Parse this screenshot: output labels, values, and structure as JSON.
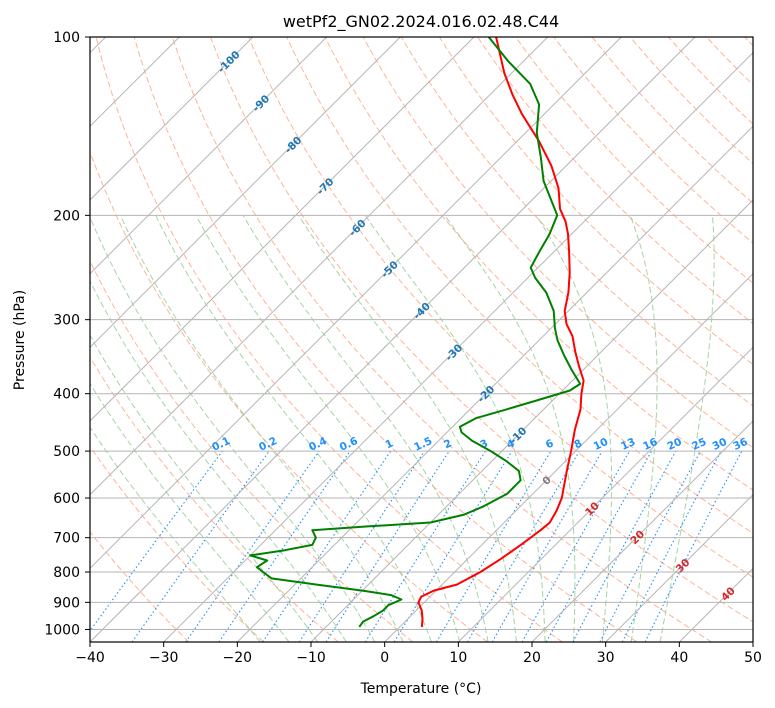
{
  "chart_data": {
    "type": "line",
    "diagram": "skew-t log-p",
    "title": "wetPf2_GN02.2024.016.02.48.C44",
    "xlabel": "Temperature (°C)",
    "ylabel": "Pressure (hPa)",
    "xlim": [
      -40,
      50
    ],
    "ylim": [
      1050,
      100
    ],
    "y_scale": "log",
    "x_ticks": [
      -40,
      -30,
      -20,
      -10,
      0,
      10,
      20,
      30,
      40,
      50
    ],
    "y_ticks": [
      100,
      200,
      300,
      400,
      500,
      600,
      700,
      800,
      900,
      1000
    ],
    "grid": true,
    "colors": {
      "temperature": "#ff0000",
      "dewpoint": "#008000",
      "isotherm": "#b5b5b5",
      "dry_adiabat": "#ffa07a",
      "moist_adiabat": "#8fc98f",
      "mixing_ratio": "#1e90ff",
      "isotherm_label_cold": "#1f77b4",
      "isotherm_label_warm": "#d62728",
      "isotherm_label_zero": "#808080"
    },
    "series": [
      {
        "name": "temperature",
        "points": [
          [
            3.0,
            990
          ],
          [
            2.0,
            960
          ],
          [
            0.8,
            930
          ],
          [
            -0.8,
            900
          ],
          [
            -1.2,
            880
          ],
          [
            -0.3,
            860
          ],
          [
            2.0,
            840
          ],
          [
            3.5,
            800
          ],
          [
            4.5,
            760
          ],
          [
            5.3,
            720
          ],
          [
            6.0,
            680
          ],
          [
            6.2,
            660
          ],
          [
            5.5,
            630
          ],
          [
            4.5,
            600
          ],
          [
            1.5,
            540
          ],
          [
            -0.6,
            500
          ],
          [
            -3.0,
            460
          ],
          [
            -5.0,
            425
          ],
          [
            -7.0,
            400
          ],
          [
            -8.5,
            380
          ],
          [
            -11.0,
            360
          ],
          [
            -13.5,
            340
          ],
          [
            -16.0,
            320
          ],
          [
            -18.5,
            305
          ],
          [
            -20.5,
            290
          ],
          [
            -22.5,
            270
          ],
          [
            -25.0,
            250
          ],
          [
            -28.0,
            230
          ],
          [
            -30.5,
            215
          ],
          [
            -32.5,
            205
          ],
          [
            -35.0,
            195
          ],
          [
            -38.0,
            180
          ],
          [
            -42.0,
            165
          ],
          [
            -47.0,
            150
          ],
          [
            -53.0,
            135
          ],
          [
            -57.0,
            125
          ],
          [
            -61.0,
            115
          ],
          [
            -67.0,
            100
          ]
        ]
      },
      {
        "name": "dewpoint",
        "points": [
          [
            -5.5,
            990
          ],
          [
            -5.7,
            970
          ],
          [
            -5.0,
            950
          ],
          [
            -4.5,
            930
          ],
          [
            -4.5,
            910
          ],
          [
            -3.5,
            890
          ],
          [
            -5.5,
            875
          ],
          [
            -10.0,
            860
          ],
          [
            -17.0,
            840
          ],
          [
            -24.0,
            820
          ],
          [
            -26.0,
            800
          ],
          [
            -27.5,
            785
          ],
          [
            -27.0,
            765
          ],
          [
            -30.0,
            750
          ],
          [
            -26.0,
            735
          ],
          [
            -23.0,
            720
          ],
          [
            -23.5,
            700
          ],
          [
            -25.0,
            680
          ],
          [
            -18.0,
            670
          ],
          [
            -10.0,
            660
          ],
          [
            -6.5,
            640
          ],
          [
            -5.0,
            620
          ],
          [
            -3.5,
            590
          ],
          [
            -3.5,
            560
          ],
          [
            -5.0,
            540
          ],
          [
            -8.0,
            520
          ],
          [
            -11.5,
            500
          ],
          [
            -15.5,
            480
          ],
          [
            -18.0,
            465
          ],
          [
            -19.0,
            455
          ],
          [
            -18.0,
            440
          ],
          [
            -15.0,
            425
          ],
          [
            -12.0,
            410
          ],
          [
            -9.0,
            395
          ],
          [
            -8.5,
            385
          ],
          [
            -11.5,
            365
          ],
          [
            -14.5,
            345
          ],
          [
            -17.5,
            325
          ],
          [
            -19.5,
            310
          ],
          [
            -22.0,
            290
          ],
          [
            -25.5,
            270
          ],
          [
            -29.0,
            255
          ],
          [
            -31.0,
            245
          ],
          [
            -32.0,
            230
          ],
          [
            -33.0,
            215
          ],
          [
            -34.5,
            200
          ],
          [
            -37.0,
            190
          ],
          [
            -41.0,
            175
          ],
          [
            -44.5,
            160
          ],
          [
            -48.5,
            145
          ],
          [
            -52.0,
            130
          ],
          [
            -56.0,
            120
          ],
          [
            -62.0,
            110
          ],
          [
            -68.0,
            100
          ]
        ]
      }
    ],
    "isotherm_labels": [
      {
        "text": "-100",
        "t": -100
      },
      {
        "text": "-90",
        "t": -90
      },
      {
        "text": "-80",
        "t": -80
      },
      {
        "text": "-70",
        "t": -70
      },
      {
        "text": "-60",
        "t": -60
      },
      {
        "text": "-50",
        "t": -50
      },
      {
        "text": "-40",
        "t": -40
      },
      {
        "text": "-30",
        "t": -30
      },
      {
        "text": "-20",
        "t": -20
      },
      {
        "text": "-10",
        "t": -10
      },
      {
        "text": "0",
        "t": 0
      },
      {
        "text": "10",
        "t": 10
      },
      {
        "text": "20",
        "t": 20
      },
      {
        "text": "30",
        "t": 30
      },
      {
        "text": "40",
        "t": 40
      }
    ],
    "mixing_ratio_labels": [
      "0.1",
      "0.2",
      "0.4",
      "0.6",
      "1",
      "1.5",
      "2",
      "3",
      "4",
      "6",
      "8",
      "10",
      "13",
      "16",
      "20",
      "25",
      "30",
      "36"
    ],
    "mixing_ratio_label_pressure": 500,
    "skew": 1.0
  }
}
